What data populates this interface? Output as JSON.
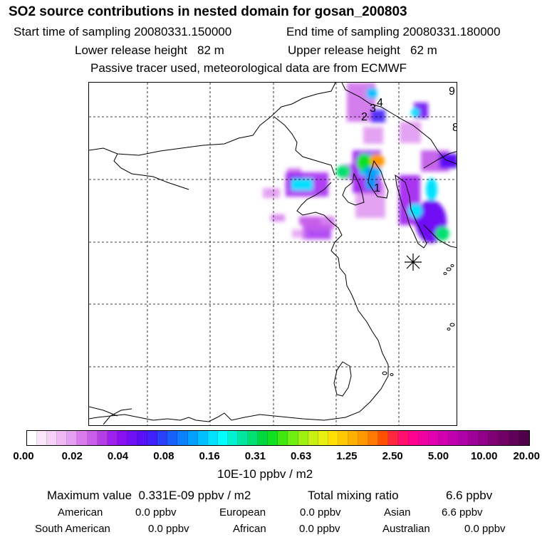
{
  "title": "SO2 source contributions in nested domain for gosan_200803",
  "start_sampling": "Start time of sampling 20080331.150000",
  "end_sampling": "End time of sampling 20080331.180000",
  "lower_release": "Lower release height   82 m",
  "upper_release": "Upper release height   62 m",
  "tracer_info": "Passive tracer used, meteorological data are from ECMWF",
  "map": {
    "labels": [
      "9",
      "8",
      "4",
      "3",
      "2",
      "1"
    ],
    "marker": "asterisk-marker"
  },
  "colorbar": {
    "ticks": [
      "0.00",
      "0.02",
      "0.04",
      "0.08",
      "0.16",
      "0.31",
      "0.63",
      "1.25",
      "2.50",
      "5.00",
      "10.00",
      "20.00"
    ],
    "colors": [
      "#ffffff",
      "#fbe6fb",
      "#f5d0f7",
      "#efb8f3",
      "#e59ef0",
      "#d97bec",
      "#c95ee9",
      "#b63ee6",
      "#a020f0",
      "#8a10f2",
      "#7010f4",
      "#5a10f6",
      "#4020f8",
      "#2840fa",
      "#1860fb",
      "#0a80fc",
      "#00a0fd",
      "#00c0fe",
      "#00e0ff",
      "#00ffff",
      "#00f0d0",
      "#00e8a0",
      "#00e070",
      "#00d840",
      "#10e020",
      "#40e810",
      "#70f010",
      "#a0f010",
      "#c8f010",
      "#e8f010",
      "#ffe000",
      "#ffc800",
      "#ffb000",
      "#ff9800",
      "#ff7800",
      "#ff5000",
      "#ff2840",
      "#ff1070",
      "#ff0090",
      "#f000a0",
      "#e000b0",
      "#d000b0",
      "#c000b0",
      "#b000a8",
      "#a00098",
      "#900088",
      "#800078",
      "#700068",
      "#600058",
      "#500048"
    ],
    "unit": "10E-10 ppbv / m2"
  },
  "stats": {
    "max_value": "Maximum value  0.331E-09 ppbv / m2",
    "total_mixing": "Total mixing ratio",
    "total_mixing_value": "6.6 ppbv",
    "american_label": "American",
    "american_value": "0.0 ppbv",
    "european_label": "European",
    "european_value": "0.0 ppbv",
    "asian_label": "Asian",
    "asian_value": "6.6 ppbv",
    "south_american_label": "South American",
    "south_american_value": "0.0 ppbv",
    "african_label": "African",
    "african_value": "0.0 ppbv",
    "australian_label": "Australian",
    "australian_value": "0.0 ppbv"
  }
}
